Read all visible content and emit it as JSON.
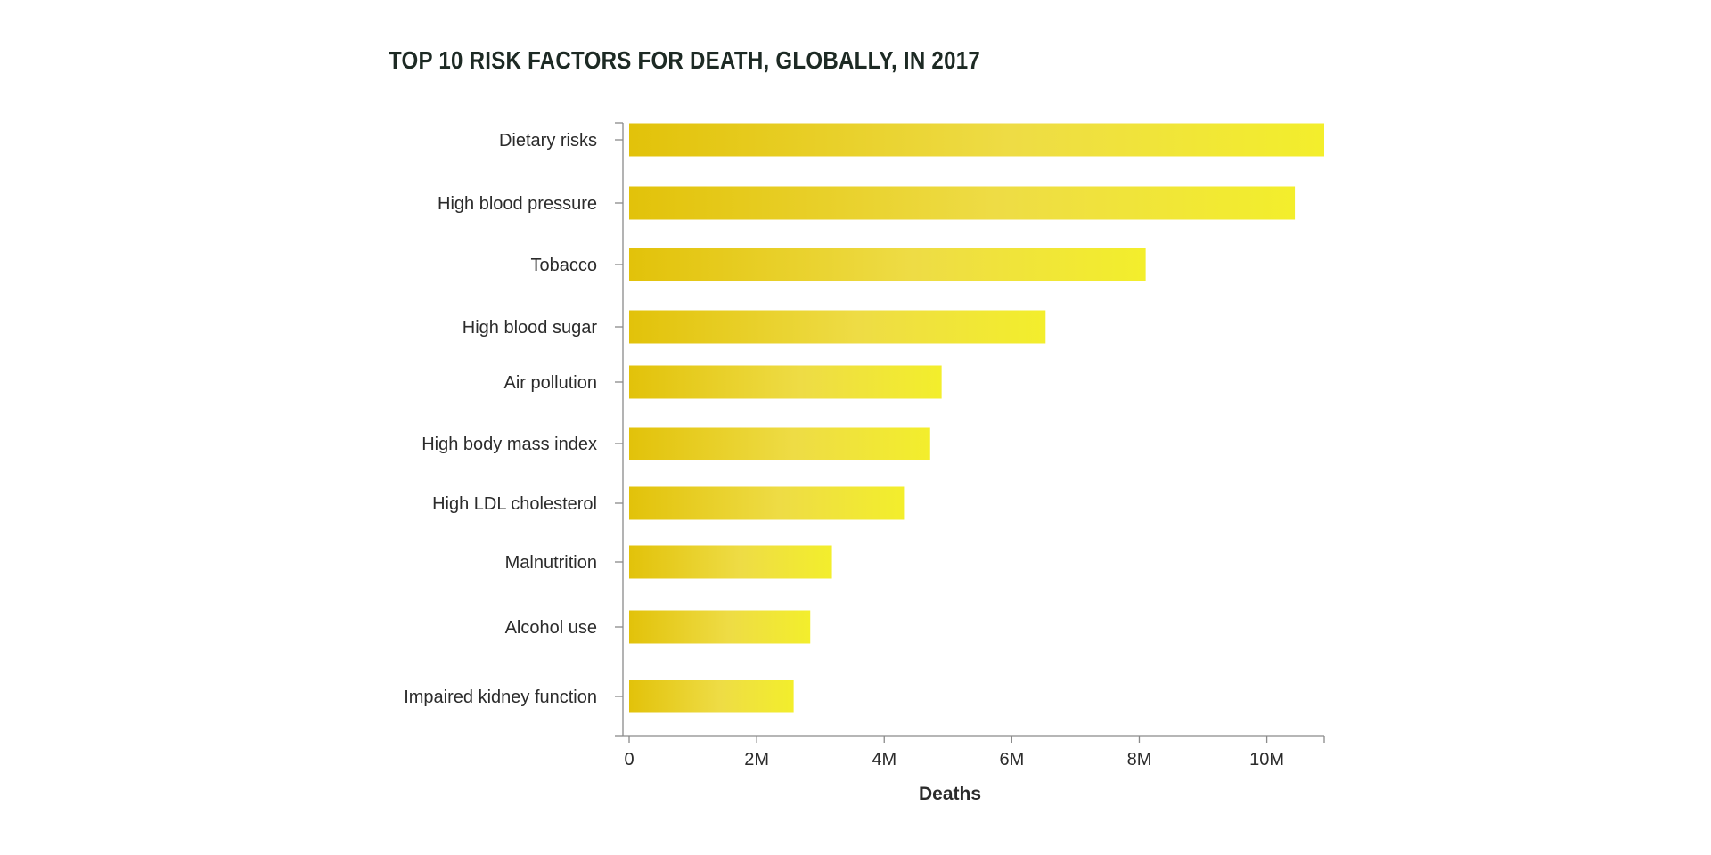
{
  "chart_data": {
    "type": "bar",
    "orientation": "horizontal",
    "title": "TOP 10 RISK FACTORS FOR DEATH, GLOBALLY, IN 2017",
    "xlabel": "Deaths",
    "ylabel": "",
    "xlim": [
      0,
      10900000
    ],
    "x_ticks": [
      0,
      2000000,
      4000000,
      6000000,
      8000000,
      10000000
    ],
    "x_tick_labels": [
      "0",
      "2M",
      "4M",
      "6M",
      "8M",
      "10M"
    ],
    "categories": [
      "Dietary risks",
      "High blood pressure",
      "Tobacco",
      "High blood sugar",
      "Air pollution",
      "High body mass index",
      "High LDL cholesterol",
      "Malnutrition",
      "Alcohol use",
      "Impaired kidney function"
    ],
    "values": [
      10900000,
      10440000,
      8100000,
      6530000,
      4900000,
      4720000,
      4310000,
      3180000,
      2840000,
      2580000
    ],
    "bar_color_start": "#e2c20a",
    "bar_color_end": "#f3ee2c",
    "legend": "none",
    "grid": false
  }
}
